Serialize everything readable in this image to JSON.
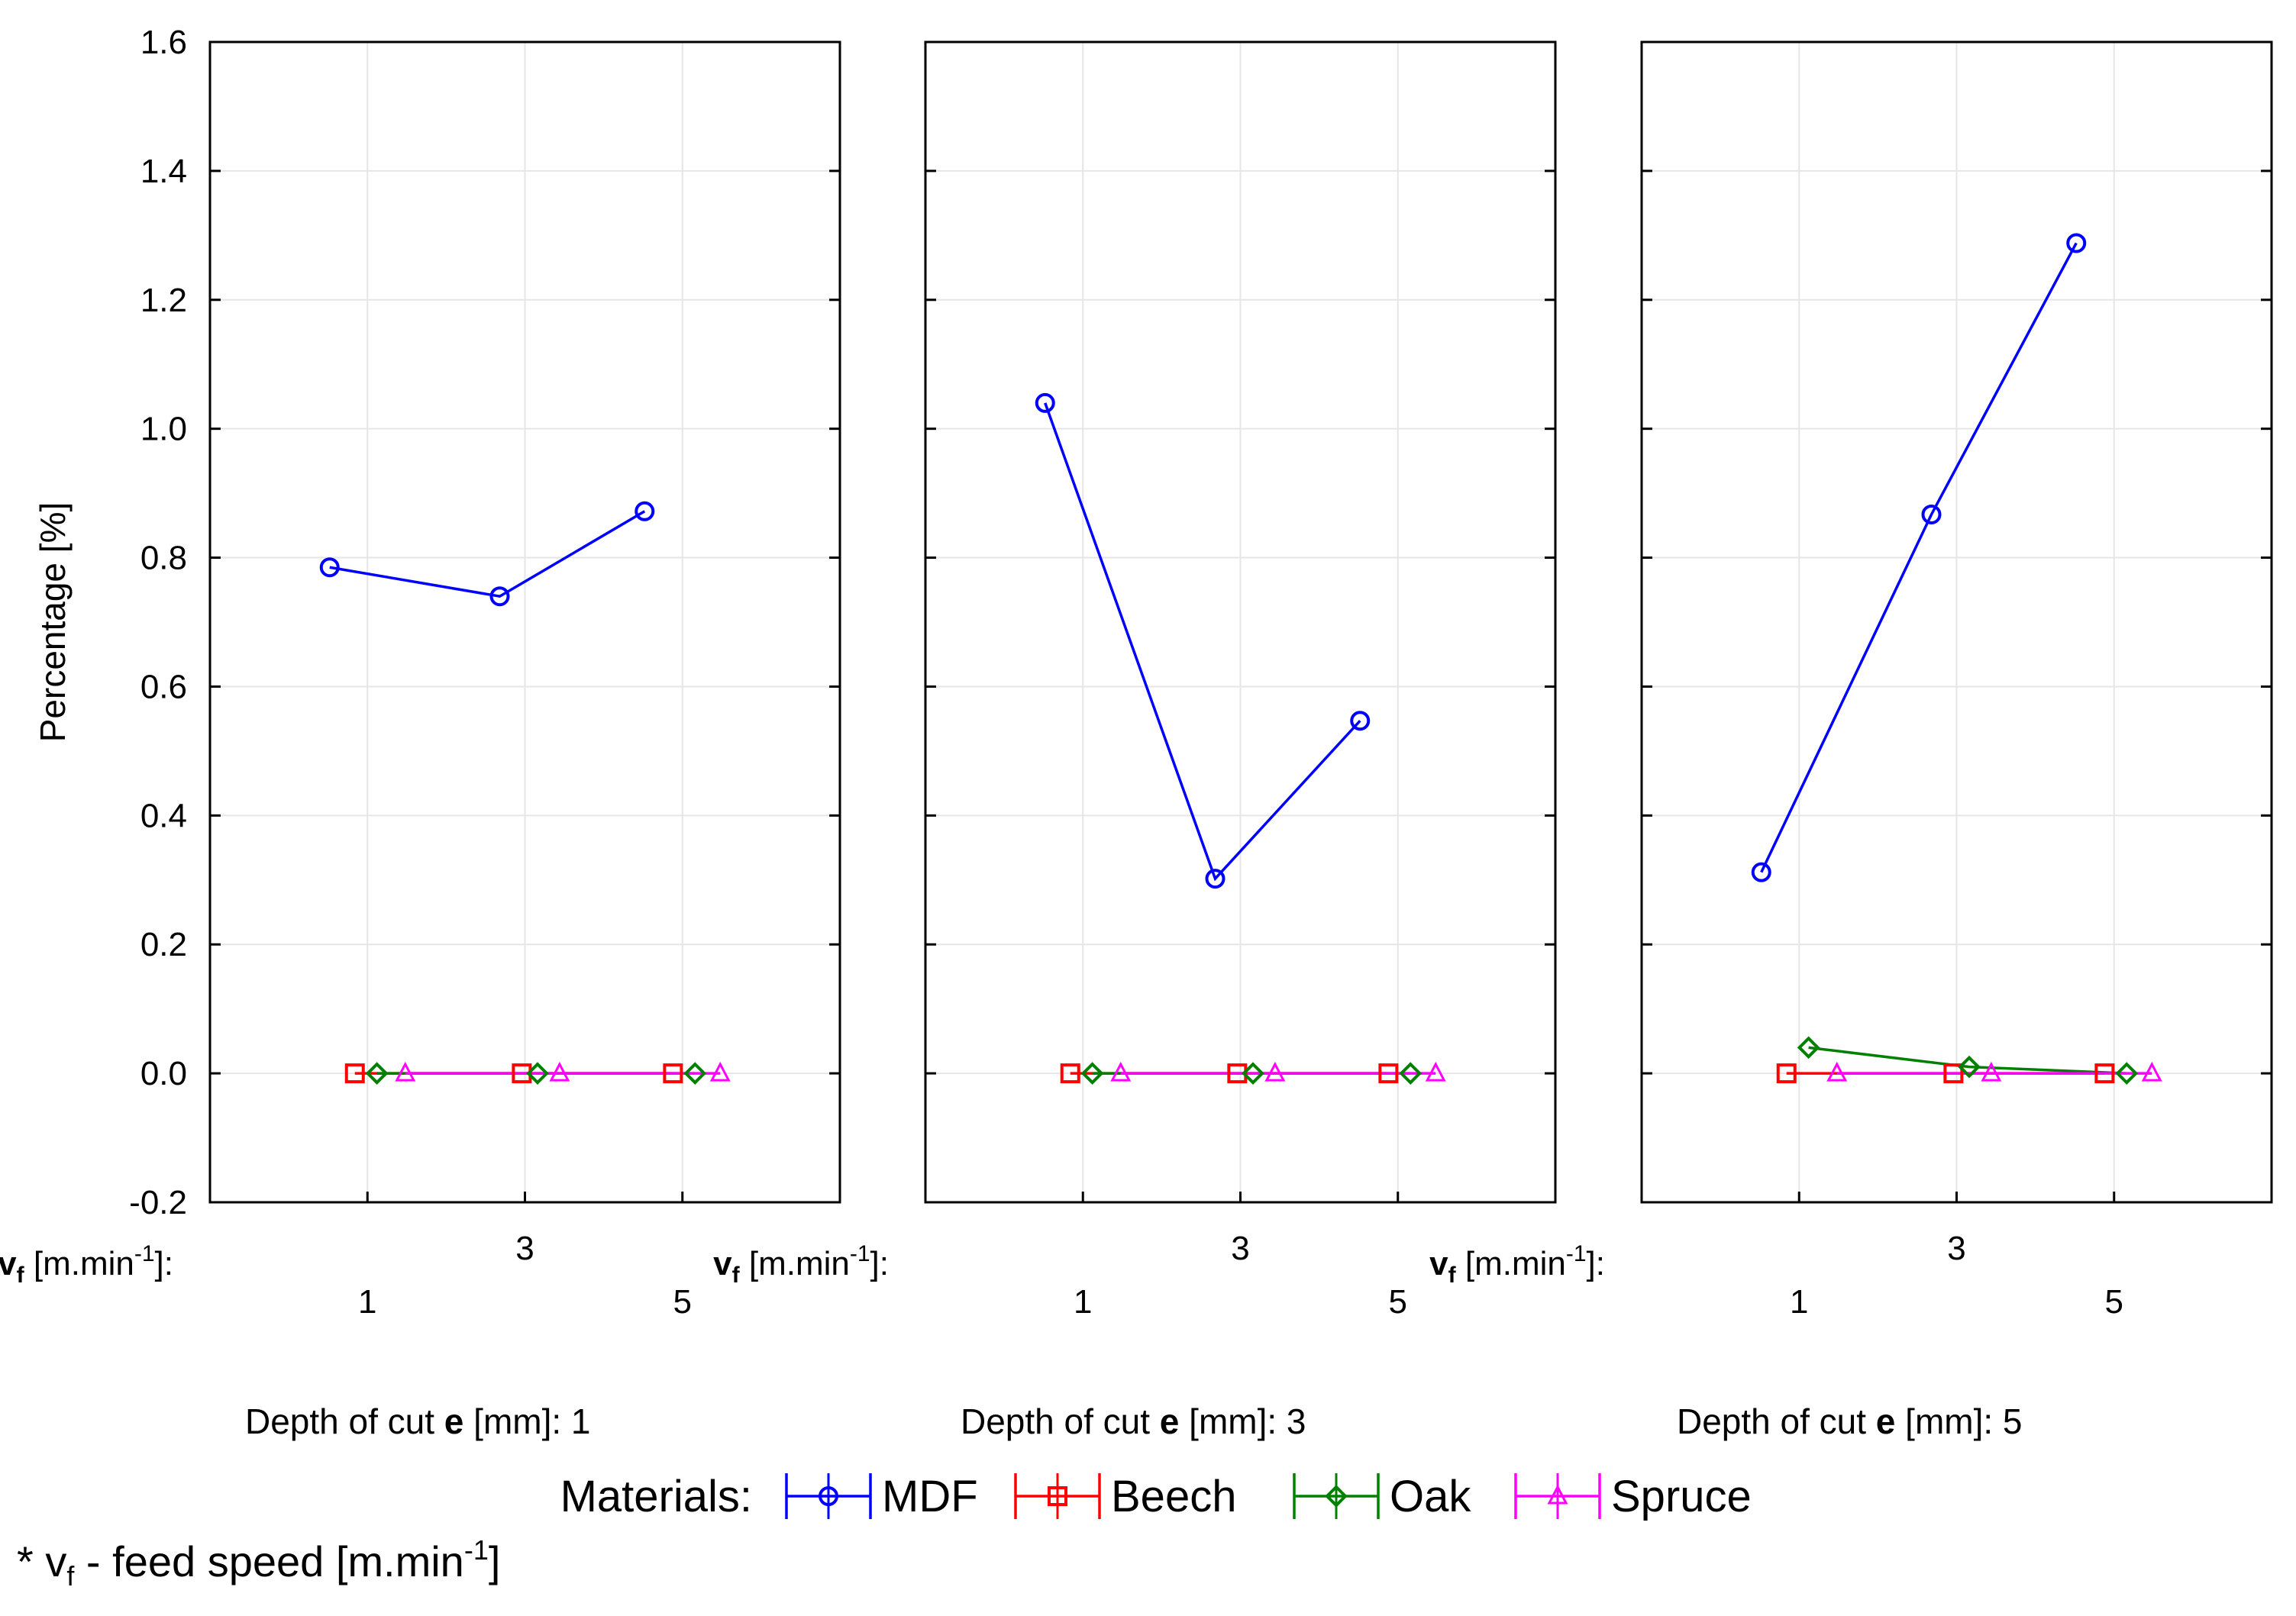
{
  "chart_data": {
    "type": "line",
    "ylabel": "Percentage [%]",
    "ylim": [
      -0.2,
      1.6
    ],
    "yticks": [
      -0.2,
      0.0,
      0.2,
      0.4,
      0.6,
      0.8,
      1.0,
      1.2,
      1.4,
      1.6
    ],
    "ytick_labels": [
      "-0.2",
      "0.0",
      "0.2",
      "0.4",
      "0.6",
      "0.8",
      "1.0",
      "1.2",
      "1.4",
      "1.6"
    ],
    "grid": true,
    "x_categories": [
      "1",
      "3",
      "5"
    ],
    "x_axis_prefix": "v",
    "x_axis_prefix_sub": "f",
    "x_axis_unit_before": " [m.min",
    "x_axis_unit_sup": "-1",
    "x_axis_unit_after": "]:",
    "legend_title": "Materials:",
    "series_meta": [
      {
        "name": "MDF",
        "color": "#0000ff",
        "marker": "circle"
      },
      {
        "name": "Beech",
        "color": "#ff0000",
        "marker": "square"
      },
      {
        "name": "Oak",
        "color": "#008000",
        "marker": "diamond"
      },
      {
        "name": "Spruce",
        "color": "#ff00ff",
        "marker": "triangle"
      }
    ],
    "panels": [
      {
        "caption_before": "Depth of cut ",
        "caption_bold": "e",
        "caption_after": " [mm]: 1",
        "series": [
          {
            "name": "MDF",
            "values": [
              0.785,
              0.74,
              0.872
            ]
          },
          {
            "name": "Beech",
            "values": [
              0.0,
              0.0,
              0.0
            ]
          },
          {
            "name": "Oak",
            "values": [
              0.0,
              0.0,
              0.0
            ]
          },
          {
            "name": "Spruce",
            "values": [
              0.0,
              0.0,
              0.0
            ]
          }
        ]
      },
      {
        "caption_before": "Depth of cut ",
        "caption_bold": "e",
        "caption_after": " [mm]: 3",
        "series": [
          {
            "name": "MDF",
            "values": [
              1.04,
              0.302,
              0.547
            ]
          },
          {
            "name": "Beech",
            "values": [
              0.0,
              0.0,
              0.0
            ]
          },
          {
            "name": "Oak",
            "values": [
              0.0,
              0.0,
              0.0
            ]
          },
          {
            "name": "Spruce",
            "values": [
              0.0,
              0.0,
              0.0
            ]
          }
        ]
      },
      {
        "caption_before": "Depth of cut ",
        "caption_bold": "e",
        "caption_after": " [mm]: 5",
        "series": [
          {
            "name": "MDF",
            "values": [
              0.312,
              0.867,
              1.288
            ]
          },
          {
            "name": "Beech",
            "values": [
              0.0,
              0.0,
              0.0
            ]
          },
          {
            "name": "Oak",
            "values": [
              0.04,
              0.01,
              0.0
            ]
          },
          {
            "name": "Spruce",
            "values": [
              0.0,
              0.0,
              0.0
            ]
          }
        ]
      }
    ],
    "footnote": {
      "prefix": "* v",
      "sub": "f",
      "middle": " - feed speed  [m.min",
      "sup": "-1",
      "suffix": "]"
    }
  }
}
